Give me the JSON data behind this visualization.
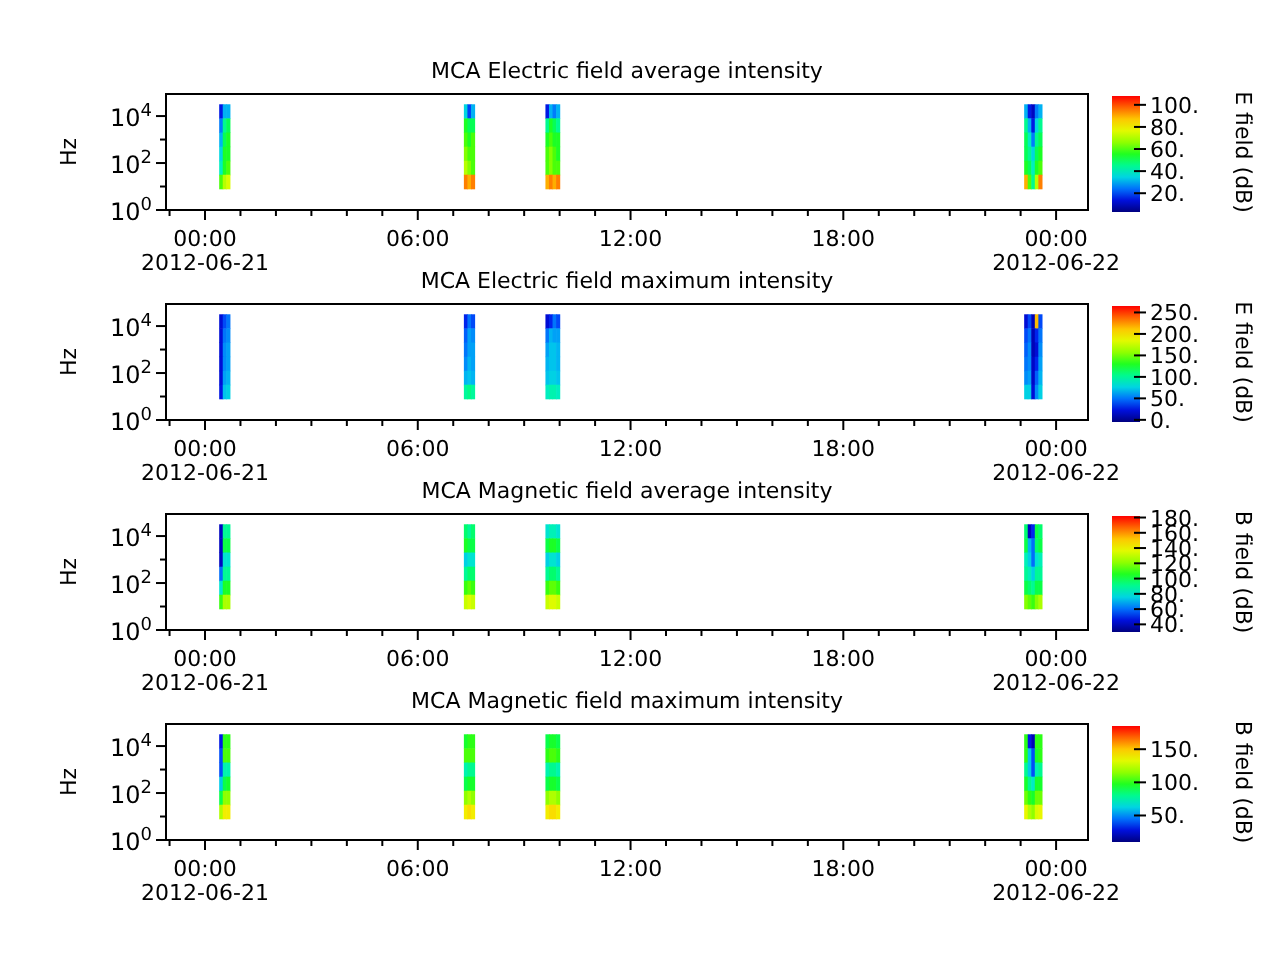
{
  "chart_data": [
    {
      "type": "heatmap",
      "title": "MCA  Electric field average intensity",
      "ylabel": "Hz",
      "clabel": "E field (dB)",
      "log": "y",
      "x": [
        0.35,
        0.45,
        0.55,
        0.65,
        0.75,
        7.25,
        7.35,
        7.45,
        7.55,
        7.65,
        9.55,
        9.65,
        9.75,
        9.85,
        9.95,
        10.05,
        23.05,
        23.15,
        23.25,
        23.35,
        23.45,
        23.55,
        23.65
      ],
      "y": [
        16000,
        4000,
        1000,
        250,
        63,
        16
      ],
      "cells": [
        [
          null,
          15,
          30,
          30,
          null,
          null,
          35,
          20,
          30,
          null,
          null,
          15,
          30,
          25,
          30,
          null,
          null,
          30,
          15,
          10,
          25,
          30,
          null
        ],
        [
          null,
          25,
          45,
          50,
          null,
          null,
          55,
          50,
          50,
          null,
          null,
          45,
          55,
          50,
          45,
          null,
          null,
          45,
          30,
          15,
          35,
          45,
          null
        ],
        [
          null,
          30,
          50,
          55,
          null,
          null,
          60,
          55,
          60,
          null,
          null,
          55,
          60,
          55,
          55,
          null,
          null,
          50,
          40,
          25,
          45,
          50,
          null
        ],
        [
          null,
          35,
          55,
          55,
          null,
          null,
          65,
          60,
          60,
          null,
          null,
          60,
          65,
          60,
          55,
          null,
          null,
          50,
          45,
          35,
          50,
          55,
          null
        ],
        [
          null,
          40,
          55,
          60,
          null,
          null,
          70,
          65,
          60,
          null,
          null,
          60,
          65,
          60,
          60,
          null,
          null,
          55,
          50,
          40,
          55,
          60,
          null
        ],
        [
          null,
          60,
          70,
          75,
          null,
          null,
          95,
          90,
          95,
          null,
          null,
          90,
          95,
          90,
          95,
          null,
          null,
          90,
          60,
          45,
          70,
          95,
          null
        ]
      ],
      "xlim": [
        -1.1,
        24.9
      ],
      "xticks": [
        {
          "value": -1,
          "label": null
        },
        {
          "value": 0,
          "label": "00:00\n2012-06-21"
        },
        {
          "value": 1,
          "label": null
        },
        {
          "value": 2,
          "label": null
        },
        {
          "value": 3,
          "label": null
        },
        {
          "value": 4,
          "label": null
        },
        {
          "value": 5,
          "label": null
        },
        {
          "value": 6,
          "label": "06:00"
        },
        {
          "value": 7,
          "label": null
        },
        {
          "value": 8,
          "label": null
        },
        {
          "value": 9,
          "label": null
        },
        {
          "value": 10,
          "label": null
        },
        {
          "value": 11,
          "label": null
        },
        {
          "value": 12,
          "label": "12:00"
        },
        {
          "value": 13,
          "label": null
        },
        {
          "value": 14,
          "label": null
        },
        {
          "value": 15,
          "label": null
        },
        {
          "value": 16,
          "label": null
        },
        {
          "value": 17,
          "label": null
        },
        {
          "value": 18,
          "label": "18:00"
        },
        {
          "value": 19,
          "label": null
        },
        {
          "value": 20,
          "label": null
        },
        {
          "value": 21,
          "label": null
        },
        {
          "value": 22,
          "label": null
        },
        {
          "value": 23,
          "label": null
        },
        {
          "value": 24,
          "label": "00:00\n2012-06-22"
        }
      ],
      "ylim": [
        1,
        87000
      ],
      "yticks": [
        {
          "value": 1,
          "label": "10$^{0}$"
        },
        {
          "value": 10,
          "label": null
        },
        {
          "value": 100,
          "label": "10$^{2}$"
        },
        {
          "value": 1000,
          "label": null
        },
        {
          "value": 10000,
          "label": "10$^{4}$"
        }
      ],
      "clim": [
        3,
        108
      ],
      "cticks": [
        {
          "value": 20,
          "label": "20."
        },
        {
          "value": 40,
          "label": "40."
        },
        {
          "value": 60,
          "label": "60."
        },
        {
          "value": 80,
          "label": "80."
        },
        {
          "value": 100,
          "label": "100."
        }
      ]
    },
    {
      "type": "heatmap",
      "title": "MCA  Electric field maximum intensity",
      "ylabel": "Hz",
      "clabel": "E field (dB)",
      "log": "y",
      "x": [
        0.35,
        0.45,
        0.55,
        0.65,
        0.75,
        7.25,
        7.35,
        7.45,
        7.55,
        7.65,
        9.55,
        9.65,
        9.75,
        9.85,
        9.95,
        10.05,
        23.05,
        23.15,
        23.25,
        23.35,
        23.45,
        23.55,
        23.65
      ],
      "y": [
        16000,
        4000,
        1000,
        250,
        63,
        16
      ],
      "cells": [
        [
          null,
          20,
          40,
          50,
          null,
          null,
          30,
          50,
          40,
          null,
          null,
          20,
          30,
          50,
          40,
          null,
          null,
          20,
          40,
          10,
          215,
          40,
          null
        ],
        [
          null,
          20,
          50,
          55,
          null,
          null,
          45,
          60,
          55,
          null,
          null,
          50,
          65,
          60,
          60,
          null,
          null,
          40,
          50,
          10,
          30,
          50,
          null
        ],
        [
          null,
          20,
          55,
          60,
          null,
          null,
          50,
          60,
          60,
          null,
          null,
          60,
          70,
          70,
          65,
          null,
          null,
          45,
          55,
          10,
          20,
          55,
          null
        ],
        [
          null,
          20,
          55,
          60,
          null,
          null,
          55,
          65,
          60,
          null,
          null,
          65,
          70,
          70,
          65,
          null,
          null,
          50,
          55,
          15,
          30,
          60,
          null
        ],
        [
          null,
          20,
          60,
          65,
          null,
          null,
          65,
          70,
          65,
          null,
          null,
          70,
          75,
          75,
          70,
          null,
          null,
          55,
          60,
          15,
          45,
          65,
          null
        ],
        [
          null,
          25,
          70,
          75,
          null,
          null,
          100,
          105,
          100,
          null,
          null,
          90,
          95,
          95,
          90,
          null,
          null,
          75,
          75,
          20,
          55,
          75,
          null
        ]
      ],
      "xlim": [
        -1.1,
        24.9
      ],
      "xticks": [
        {
          "value": -1,
          "label": null
        },
        {
          "value": 0,
          "label": "00:00\n2012-06-21"
        },
        {
          "value": 1,
          "label": null
        },
        {
          "value": 2,
          "label": null
        },
        {
          "value": 3,
          "label": null
        },
        {
          "value": 4,
          "label": null
        },
        {
          "value": 5,
          "label": null
        },
        {
          "value": 6,
          "label": "06:00"
        },
        {
          "value": 7,
          "label": null
        },
        {
          "value": 8,
          "label": null
        },
        {
          "value": 9,
          "label": null
        },
        {
          "value": 10,
          "label": null
        },
        {
          "value": 11,
          "label": null
        },
        {
          "value": 12,
          "label": "12:00"
        },
        {
          "value": 13,
          "label": null
        },
        {
          "value": 14,
          "label": null
        },
        {
          "value": 15,
          "label": null
        },
        {
          "value": 16,
          "label": null
        },
        {
          "value": 17,
          "label": null
        },
        {
          "value": 18,
          "label": "18:00"
        },
        {
          "value": 19,
          "label": null
        },
        {
          "value": 20,
          "label": null
        },
        {
          "value": 21,
          "label": null
        },
        {
          "value": 22,
          "label": null
        },
        {
          "value": 23,
          "label": null
        },
        {
          "value": 24,
          "label": "00:00\n2012-06-22"
        }
      ],
      "ylim": [
        1,
        87000
      ],
      "yticks": [
        {
          "value": 1,
          "label": "10$^{0}$"
        },
        {
          "value": 10,
          "label": null
        },
        {
          "value": 100,
          "label": "10$^{2}$"
        },
        {
          "value": 1000,
          "label": null
        },
        {
          "value": 10000,
          "label": "10$^{4}$"
        }
      ],
      "clim": [
        -5,
        265
      ],
      "cticks": [
        {
          "value": 0,
          "label": "0."
        },
        {
          "value": 50,
          "label": "50."
        },
        {
          "value": 100,
          "label": "100."
        },
        {
          "value": 150,
          "label": "150."
        },
        {
          "value": 200,
          "label": "200."
        },
        {
          "value": 250,
          "label": "250."
        }
      ]
    },
    {
      "type": "heatmap",
      "title": "MCA  Magnetic field average intensity",
      "ylabel": "Hz",
      "clabel": "B field (dB)",
      "log": "y",
      "x": [
        0.35,
        0.45,
        0.55,
        0.65,
        0.75,
        7.25,
        7.35,
        7.45,
        7.55,
        7.65,
        9.55,
        9.65,
        9.75,
        9.85,
        9.95,
        10.05,
        23.05,
        23.15,
        23.25,
        23.35,
        23.45,
        23.55,
        23.65
      ],
      "y": [
        16000,
        4000,
        1000,
        250,
        63,
        16
      ],
      "cells": [
        [
          null,
          40,
          90,
          90,
          null,
          null,
          95,
          90,
          95,
          null,
          null,
          80,
          85,
          85,
          80,
          null,
          null,
          95,
          40,
          50,
          100,
          95,
          null
        ],
        [
          null,
          40,
          100,
          100,
          null,
          null,
          105,
          100,
          100,
          null,
          null,
          100,
          105,
          105,
          100,
          null,
          null,
          100,
          70,
          60,
          95,
          100,
          null
        ],
        [
          null,
          40,
          80,
          80,
          null,
          null,
          75,
          80,
          80,
          null,
          null,
          75,
          80,
          80,
          75,
          null,
          null,
          85,
          75,
          60,
          80,
          85,
          null
        ],
        [
          null,
          60,
          90,
          90,
          null,
          null,
          90,
          95,
          95,
          null,
          null,
          90,
          95,
          95,
          90,
          null,
          null,
          90,
          85,
          75,
          90,
          90,
          null
        ],
        [
          null,
          80,
          105,
          105,
          null,
          null,
          110,
          115,
          110,
          null,
          null,
          110,
          115,
          115,
          110,
          null,
          null,
          100,
          95,
          90,
          100,
          100,
          null
        ],
        [
          null,
          110,
          125,
          125,
          null,
          null,
          130,
          135,
          130,
          null,
          null,
          130,
          135,
          135,
          130,
          null,
          null,
          120,
          115,
          110,
          120,
          125,
          null
        ]
      ],
      "xlim": [
        -1.1,
        24.9
      ],
      "xticks": [
        {
          "value": -1,
          "label": null
        },
        {
          "value": 0,
          "label": "00:00\n2012-06-21"
        },
        {
          "value": 1,
          "label": null
        },
        {
          "value": 2,
          "label": null
        },
        {
          "value": 3,
          "label": null
        },
        {
          "value": 4,
          "label": null
        },
        {
          "value": 5,
          "label": null
        },
        {
          "value": 6,
          "label": "06:00"
        },
        {
          "value": 7,
          "label": null
        },
        {
          "value": 8,
          "label": null
        },
        {
          "value": 9,
          "label": null
        },
        {
          "value": 10,
          "label": null
        },
        {
          "value": 11,
          "label": null
        },
        {
          "value": 12,
          "label": "12:00"
        },
        {
          "value": 13,
          "label": null
        },
        {
          "value": 14,
          "label": null
        },
        {
          "value": 15,
          "label": null
        },
        {
          "value": 16,
          "label": null
        },
        {
          "value": 17,
          "label": null
        },
        {
          "value": 18,
          "label": "18:00"
        },
        {
          "value": 19,
          "label": null
        },
        {
          "value": 20,
          "label": null
        },
        {
          "value": 21,
          "label": null
        },
        {
          "value": 22,
          "label": null
        },
        {
          "value": 23,
          "label": null
        },
        {
          "value": 24,
          "label": "00:00\n2012-06-22"
        }
      ],
      "ylim": [
        1,
        87000
      ],
      "yticks": [
        {
          "value": 1,
          "label": "10$^{0}$"
        },
        {
          "value": 10,
          "label": null
        },
        {
          "value": 100,
          "label": "10$^{2}$"
        },
        {
          "value": 1000,
          "label": null
        },
        {
          "value": 10000,
          "label": "10$^{4}$"
        }
      ],
      "clim": [
        30,
        182
      ],
      "cticks": [
        {
          "value": 40,
          "label": "40."
        },
        {
          "value": 60,
          "label": "60."
        },
        {
          "value": 80,
          "label": "80."
        },
        {
          "value": 100,
          "label": "100."
        },
        {
          "value": 120,
          "label": "120."
        },
        {
          "value": 140,
          "label": "140."
        },
        {
          "value": 160,
          "label": "160."
        },
        {
          "value": 180,
          "label": "180."
        }
      ]
    },
    {
      "type": "heatmap",
      "title": "MCA  Magnetic field maximum intensity",
      "ylabel": "Hz",
      "clabel": "B field (dB)",
      "log": "y",
      "x": [
        0.35,
        0.45,
        0.55,
        0.65,
        0.75,
        7.25,
        7.35,
        7.45,
        7.55,
        7.65,
        9.55,
        9.65,
        9.75,
        9.85,
        9.95,
        10.05,
        23.05,
        23.15,
        23.25,
        23.35,
        23.45,
        23.55,
        23.65
      ],
      "y": [
        16000,
        4000,
        1000,
        250,
        63,
        16
      ],
      "cells": [
        [
          null,
          30,
          100,
          100,
          null,
          null,
          95,
          100,
          100,
          null,
          null,
          90,
          95,
          95,
          90,
          null,
          null,
          100,
          30,
          20,
          100,
          100,
          null
        ],
        [
          null,
          40,
          105,
          105,
          null,
          null,
          105,
          105,
          105,
          null,
          null,
          100,
          105,
          105,
          100,
          null,
          null,
          100,
          60,
          40,
          95,
          100,
          null
        ],
        [
          null,
          40,
          75,
          75,
          null,
          null,
          75,
          80,
          80,
          null,
          null,
          75,
          80,
          80,
          75,
          null,
          null,
          80,
          60,
          40,
          75,
          80,
          null
        ],
        [
          null,
          60,
          90,
          95,
          null,
          null,
          90,
          95,
          95,
          null,
          null,
          90,
          95,
          95,
          90,
          null,
          null,
          95,
          80,
          70,
          95,
          95,
          null
        ],
        [
          null,
          90,
          115,
          115,
          null,
          null,
          115,
          120,
          115,
          null,
          null,
          115,
          120,
          120,
          115,
          null,
          null,
          110,
          100,
          95,
          110,
          110,
          null
        ],
        [
          null,
          120,
          140,
          140,
          null,
          null,
          140,
          145,
          140,
          null,
          null,
          140,
          145,
          145,
          140,
          null,
          null,
          135,
          120,
          115,
          130,
          135,
          null
        ]
      ],
      "xlim": [
        -1.1,
        24.9
      ],
      "xticks": [
        {
          "value": -1,
          "label": null
        },
        {
          "value": 0,
          "label": "00:00\n2012-06-21"
        },
        {
          "value": 1,
          "label": null
        },
        {
          "value": 2,
          "label": null
        },
        {
          "value": 3,
          "label": null
        },
        {
          "value": 4,
          "label": null
        },
        {
          "value": 5,
          "label": null
        },
        {
          "value": 6,
          "label": "06:00"
        },
        {
          "value": 7,
          "label": null
        },
        {
          "value": 8,
          "label": null
        },
        {
          "value": 9,
          "label": null
        },
        {
          "value": 10,
          "label": null
        },
        {
          "value": 11,
          "label": null
        },
        {
          "value": 12,
          "label": "12:00"
        },
        {
          "value": 13,
          "label": null
        },
        {
          "value": 14,
          "label": null
        },
        {
          "value": 15,
          "label": null
        },
        {
          "value": 16,
          "label": null
        },
        {
          "value": 17,
          "label": null
        },
        {
          "value": 18,
          "label": "18:00"
        },
        {
          "value": 19,
          "label": null
        },
        {
          "value": 20,
          "label": null
        },
        {
          "value": 21,
          "label": null
        },
        {
          "value": 22,
          "label": null
        },
        {
          "value": 23,
          "label": null
        },
        {
          "value": 24,
          "label": "00:00\n2012-06-22"
        }
      ],
      "ylim": [
        1,
        87000
      ],
      "yticks": [
        {
          "value": 1,
          "label": "10$^{0}$"
        },
        {
          "value": 10,
          "label": null
        },
        {
          "value": 100,
          "label": "10$^{2}$"
        },
        {
          "value": 1000,
          "label": null
        },
        {
          "value": 10000,
          "label": "10$^{4}$"
        }
      ],
      "clim": [
        10,
        185
      ],
      "cticks": [
        {
          "value": 50,
          "label": "50."
        },
        {
          "value": 100,
          "label": "100."
        },
        {
          "value": 150,
          "label": "150."
        }
      ]
    }
  ]
}
